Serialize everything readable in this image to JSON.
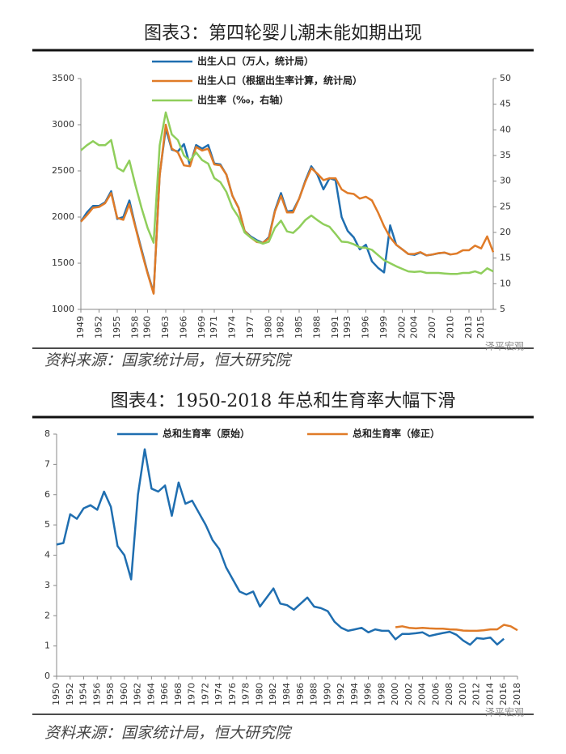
{
  "chart_data": [
    {
      "type": "line",
      "title": "图表3：第四轮婴儿潮未能如期出现",
      "source": "资料来源：国家统计局，恒大研究院",
      "watermark": "泽平宏观",
      "x": [
        1949,
        1950,
        1951,
        1952,
        1953,
        1954,
        1955,
        1956,
        1957,
        1958,
        1959,
        1960,
        1961,
        1962,
        1963,
        1964,
        1965,
        1966,
        1967,
        1968,
        1969,
        1970,
        1971,
        1972,
        1973,
        1974,
        1975,
        1976,
        1977,
        1978,
        1979,
        1980,
        1981,
        1982,
        1983,
        1984,
        1985,
        1986,
        1987,
        1988,
        1989,
        1990,
        1991,
        1992,
        1993,
        1994,
        1995,
        1996,
        1997,
        1998,
        1999,
        2000,
        2001,
        2002,
        2003,
        2004,
        2005,
        2006,
        2007,
        2008,
        2009,
        2010,
        2011,
        2012,
        2013,
        2014,
        2015,
        2016,
        2017
      ],
      "xlim": [
        1949,
        2017
      ],
      "xticks": [
        1949,
        1952,
        1955,
        1958,
        1960,
        1963,
        1966,
        1969,
        1971,
        1974,
        1977,
        1980,
        1982,
        1985,
        1988,
        1991,
        1993,
        1996,
        1999,
        2002,
        2004,
        2007,
        2010,
        2013,
        2015
      ],
      "ylim": [
        1000,
        3500
      ],
      "yticks": [
        1000,
        1500,
        2000,
        2500,
        3000,
        3500
      ],
      "y2lim": [
        5,
        50
      ],
      "y2ticks": [
        5,
        10,
        15,
        20,
        25,
        30,
        35,
        40,
        45,
        50
      ],
      "series": [
        {
          "name": "出生人口（万人，统计局）",
          "color": "#1f6eb0",
          "values": [
            1950,
            2050,
            2120,
            2120,
            2160,
            2280,
            1980,
            2000,
            2180,
            1900,
            1650,
            1400,
            1180,
            2460,
            2960,
            2730,
            2710,
            2790,
            2560,
            2780,
            2740,
            2780,
            2580,
            2570,
            2460,
            2230,
            2100,
            1850,
            1790,
            1750,
            1720,
            1780,
            2070,
            2260,
            2060,
            2070,
            2200,
            2390,
            2550,
            2460,
            2300,
            2420,
            2400,
            2000,
            1850,
            1780,
            1650,
            1700,
            1520,
            1450,
            1400,
            1910,
            1700,
            1650,
            1600,
            1590,
            1617,
            1584,
            1594,
            1608,
            1615,
            1592,
            null,
            null,
            null,
            null,
            null,
            null,
            null
          ]
        },
        {
          "name": "出生人口（根据出生率计算，统计局）",
          "color": "#e07b28",
          "values": [
            1950,
            2020,
            2100,
            2110,
            2150,
            2260,
            1990,
            1970,
            2140,
            1890,
            1630,
            1390,
            1170,
            2450,
            3000,
            2740,
            2700,
            2560,
            2550,
            2760,
            2720,
            2740,
            2570,
            2560,
            2460,
            2230,
            2100,
            1850,
            1780,
            1730,
            1720,
            1770,
            2060,
            2230,
            2050,
            2050,
            2200,
            2380,
            2530,
            2470,
            2400,
            2420,
            2420,
            2300,
            2260,
            2250,
            2200,
            2220,
            2180,
            2050,
            1900,
            1780,
            1700,
            1650,
            1600,
            1600,
            1620,
            1585,
            1595,
            1610,
            1615,
            1595,
            1605,
            1640,
            1640,
            1690,
            1660,
            1790,
            1620
          ]
        },
        {
          "name": "出生率（‰，右轴）",
          "color": "#8fce5b",
          "axis": "y2",
          "values": [
            36,
            37,
            37.8,
            37,
            37,
            38,
            32.6,
            31.9,
            34,
            29.2,
            24.8,
            20.9,
            18,
            37,
            43.4,
            39.1,
            38,
            35,
            34,
            35.6,
            34.1,
            33.4,
            30.6,
            29.8,
            27.9,
            24.8,
            23,
            20,
            19,
            18.3,
            17.8,
            18.2,
            20.9,
            22.3,
            20.2,
            19.9,
            21,
            22.4,
            23.3,
            22.4,
            21.6,
            21.1,
            19.7,
            18.2,
            18.1,
            17.7,
            17.1,
            17,
            16.6,
            15.6,
            14.6,
            14,
            13.4,
            12.9,
            12.4,
            12.3,
            12.4,
            12.1,
            12.1,
            12.1,
            12,
            11.9,
            11.9,
            12.1,
            12.1,
            12.4,
            12,
            13,
            12.4
          ]
        }
      ]
    },
    {
      "type": "line",
      "title": "图表4：1950-2018 年总和生育率大幅下滑",
      "source": "资料来源：国家统计局，恒大研究院",
      "watermark": "泽平宏观",
      "x": [
        1950,
        1951,
        1952,
        1953,
        1954,
        1955,
        1956,
        1957,
        1958,
        1959,
        1960,
        1961,
        1962,
        1963,
        1964,
        1965,
        1966,
        1967,
        1968,
        1969,
        1970,
        1971,
        1972,
        1973,
        1974,
        1975,
        1976,
        1977,
        1978,
        1979,
        1980,
        1981,
        1982,
        1983,
        1984,
        1985,
        1986,
        1987,
        1988,
        1989,
        1990,
        1991,
        1992,
        1993,
        1994,
        1995,
        1996,
        1997,
        1998,
        1999,
        2000,
        2001,
        2002,
        2003,
        2004,
        2005,
        2006,
        2007,
        2008,
        2009,
        2010,
        2011,
        2012,
        2013,
        2014,
        2015,
        2016,
        2017,
        2018
      ],
      "xlim": [
        1950,
        2018
      ],
      "xticks": [
        1950,
        1952,
        1954,
        1956,
        1958,
        1960,
        1962,
        1964,
        1966,
        1968,
        1970,
        1972,
        1974,
        1976,
        1978,
        1980,
        1982,
        1984,
        1986,
        1988,
        1990,
        1992,
        1994,
        1996,
        1998,
        2000,
        2002,
        2004,
        2006,
        2008,
        2010,
        2012,
        2014,
        2016,
        2018
      ],
      "ylim": [
        0,
        8
      ],
      "yticks": [
        0,
        1,
        2,
        3,
        4,
        5,
        6,
        7,
        8
      ],
      "series": [
        {
          "name": "总和生育率（原始）",
          "color": "#1f6eb0",
          "values": [
            4.35,
            4.4,
            5.35,
            5.2,
            5.55,
            5.65,
            5.5,
            6.1,
            5.6,
            4.3,
            4.0,
            3.2,
            6.0,
            7.5,
            6.2,
            6.1,
            6.3,
            5.3,
            6.4,
            5.7,
            5.8,
            5.4,
            5.0,
            4.5,
            4.2,
            3.6,
            3.2,
            2.8,
            2.7,
            2.8,
            2.3,
            2.6,
            2.9,
            2.4,
            2.35,
            2.2,
            2.4,
            2.6,
            2.3,
            2.25,
            2.15,
            1.8,
            1.6,
            1.5,
            1.55,
            1.6,
            1.45,
            1.55,
            1.5,
            1.5,
            1.22,
            1.4,
            1.4,
            1.42,
            1.45,
            1.33,
            1.38,
            1.43,
            1.47,
            1.37,
            1.18,
            1.04,
            1.26,
            1.24,
            1.28,
            1.05,
            1.24,
            null,
            null
          ]
        },
        {
          "name": "总和生育率（修正）",
          "color": "#e07b28",
          "values": [
            null,
            null,
            null,
            null,
            null,
            null,
            null,
            null,
            null,
            null,
            null,
            null,
            null,
            null,
            null,
            null,
            null,
            null,
            null,
            null,
            null,
            null,
            null,
            null,
            null,
            null,
            null,
            null,
            null,
            null,
            null,
            null,
            null,
            null,
            null,
            null,
            null,
            null,
            null,
            null,
            null,
            null,
            null,
            null,
            null,
            null,
            null,
            null,
            null,
            null,
            1.62,
            1.65,
            1.6,
            1.58,
            1.6,
            1.58,
            1.57,
            1.57,
            1.55,
            1.54,
            1.51,
            1.5,
            1.5,
            1.52,
            1.55,
            1.55,
            1.7,
            1.65,
            1.52
          ]
        }
      ]
    }
  ]
}
